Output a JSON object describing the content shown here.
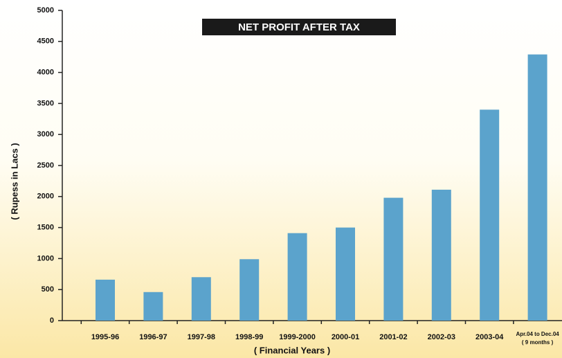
{
  "chart_data": {
    "type": "bar",
    "title": "NET PROFIT AFTER TAX",
    "y_label": "( Rupess in Lacs )",
    "x_label": "( Financial Years )",
    "categories": [
      "1995-96",
      "1996-97",
      "1997-98",
      "1998-99",
      "1999-2000",
      "2000-01",
      "2001-02",
      "2002-03",
      "2003-04",
      "Apr.04 to Dec.04\n( 9 months )"
    ],
    "values": [
      660,
      460,
      700,
      990,
      1410,
      1500,
      1980,
      2110,
      3400,
      4290
    ],
    "color": "#5ba3cc",
    "ylim": [
      0,
      5000
    ],
    "yticks": [
      0,
      500,
      1000,
      1500,
      2000,
      2500,
      3000,
      3500,
      4000,
      4500,
      5000
    ],
    "grid": false
  }
}
